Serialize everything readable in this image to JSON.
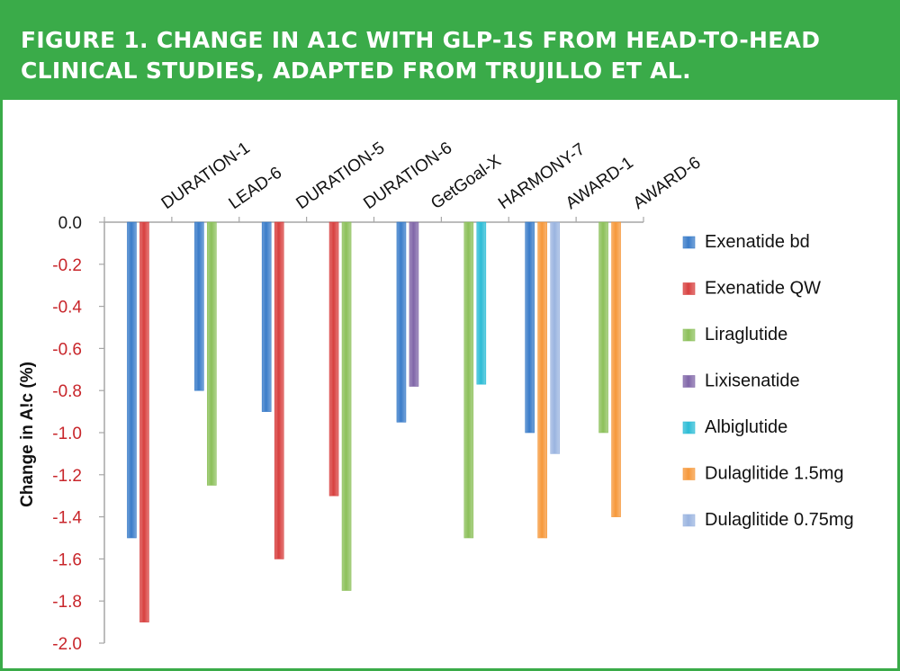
{
  "header": {
    "title": "FIGURE 1. CHANGE IN A1C WITH GLP-1S FROM HEAD-TO-HEAD CLINICAL STUDIES, ADAPTED FROM TRUJILLO ET AL."
  },
  "colors": {
    "header_green": "#3aab49",
    "axis_tick_red": "#c8262b",
    "grid_line": "#a6a6a6"
  },
  "chart_data": {
    "type": "bar",
    "title": "",
    "xlabel": "",
    "ylabel": "Change in A!c (%)",
    "ylim": [
      -2.0,
      0.0
    ],
    "yticks": [
      {
        "value": 0.0,
        "label": "0.0"
      },
      {
        "value": -0.2,
        "label": "-0.2"
      },
      {
        "value": -0.4,
        "label": "-0.4"
      },
      {
        "value": -0.6,
        "label": "-0.6"
      },
      {
        "value": -0.8,
        "label": "-0.8"
      },
      {
        "value": -1.0,
        "label": "-1.0"
      },
      {
        "value": -1.2,
        "label": "-1.2"
      },
      {
        "value": -1.4,
        "label": "-1.4"
      },
      {
        "value": -1.6,
        "label": "-1.6"
      },
      {
        "value": -1.8,
        "label": "-1.8"
      },
      {
        "value": -2.0,
        "label": "-2.0"
      }
    ],
    "categories": [
      "DURATION-1",
      "LEAD-6",
      "DURATION-5",
      "DURATION-6",
      "GetGoal-X",
      "HARMONY-7",
      "AWARD-1",
      "AWARD-6"
    ],
    "series": [
      {
        "name": "Exenatide bd",
        "color": "#3a7cc9",
        "values": [
          -1.5,
          -0.8,
          -0.9,
          null,
          -0.95,
          null,
          -1.0,
          null
        ]
      },
      {
        "name": "Exenatide QW",
        "color": "#d8403f",
        "values": [
          -1.9,
          null,
          -1.6,
          -1.3,
          null,
          null,
          null,
          null
        ]
      },
      {
        "name": "Liraglutide",
        "color": "#8cc05a",
        "values": [
          null,
          -1.25,
          null,
          -1.75,
          null,
          -1.5,
          null,
          -1.0
        ]
      },
      {
        "name": "Lixisenatide",
        "color": "#8066a8",
        "values": [
          null,
          null,
          null,
          null,
          -0.78,
          null,
          null,
          null
        ]
      },
      {
        "name": "Albiglutide",
        "color": "#2cbcd6",
        "values": [
          null,
          null,
          null,
          null,
          null,
          -0.77,
          null,
          null
        ]
      },
      {
        "name": "Dulaglitide 1.5mg",
        "color": "#f6983a",
        "values": [
          null,
          null,
          null,
          null,
          null,
          null,
          -1.5,
          -1.4
        ]
      },
      {
        "name": "Dulaglitide 0.75mg",
        "color": "#9ab4e0",
        "values": [
          null,
          null,
          null,
          null,
          null,
          null,
          -1.1,
          null
        ]
      }
    ],
    "legend": "right"
  }
}
